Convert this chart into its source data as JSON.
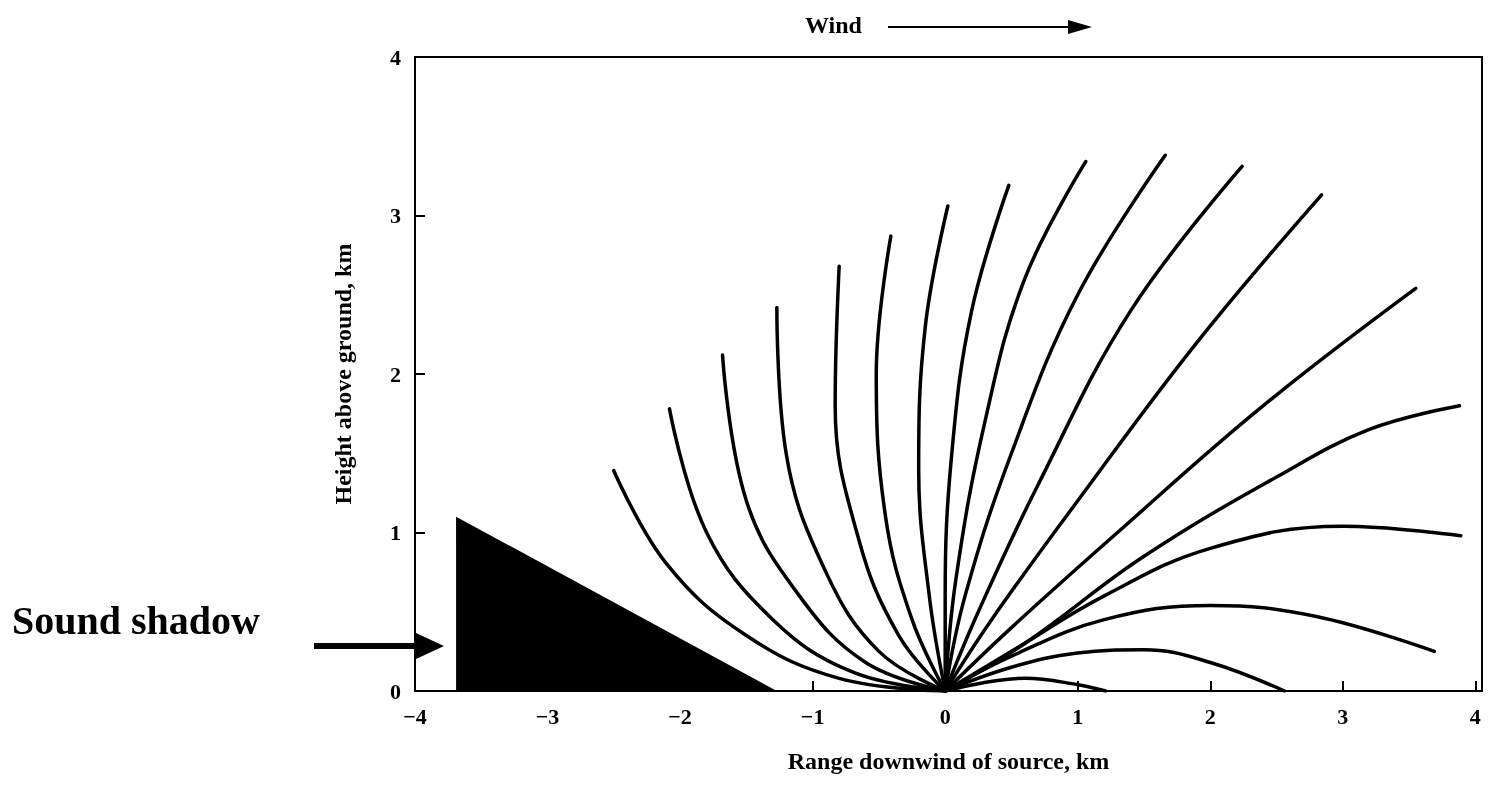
{
  "chart_data": {
    "type": "line",
    "title": "Wind",
    "xlabel": "Range downwind of source, km",
    "ylabel": "Height above ground, km",
    "xlim": [
      -4,
      4.05
    ],
    "ylim": [
      0,
      4
    ],
    "xticks": [
      -4,
      -3,
      -2,
      -1,
      0,
      1,
      2,
      3,
      4
    ],
    "yticks": [
      0,
      1,
      2,
      3,
      4
    ],
    "grid": false,
    "marker": "none",
    "line_style": "solid",
    "annotations": [
      "Sound shadow"
    ],
    "series": [
      {
        "type": "area",
        "color": "#000000",
        "x": [
          -3.69,
          -1.27
        ],
        "values": [
          1.1,
          0
        ]
      },
      {
        "color": "#000000",
        "x": [
          0,
          -0.8,
          -1.5,
          -2.1,
          -2.5
        ],
        "values": [
          0,
          0.08,
          0.35,
          0.8,
          1.39
        ]
      },
      {
        "color": "#000000",
        "x": [
          0,
          -0.7,
          -1.3,
          -1.8,
          -2.08
        ],
        "values": [
          0,
          0.12,
          0.45,
          1.0,
          1.78
        ]
      },
      {
        "color": "#000000",
        "x": [
          0,
          -0.6,
          -1.1,
          -1.5,
          -1.68
        ],
        "values": [
          0,
          0.18,
          0.6,
          1.2,
          2.12
        ]
      },
      {
        "color": "#000000",
        "x": [
          0,
          -0.5,
          -0.9,
          -1.2,
          -1.27
        ],
        "values": [
          0,
          0.25,
          0.75,
          1.5,
          2.42
        ]
      },
      {
        "color": "#000000",
        "x": [
          0,
          -0.35,
          -0.65,
          -0.83,
          -0.8
        ],
        "values": [
          0,
          0.35,
          0.95,
          1.8,
          2.68
        ]
      },
      {
        "color": "#000000",
        "x": [
          0,
          -0.25,
          -0.45,
          -0.52,
          -0.41
        ],
        "values": [
          0,
          0.45,
          1.1,
          2.0,
          2.87
        ]
      },
      {
        "color": "#000000",
        "x": [
          0,
          -0.12,
          -0.2,
          -0.15,
          0.02
        ],
        "values": [
          0,
          0.6,
          1.4,
          2.3,
          3.06
        ]
      },
      {
        "color": "#000000",
        "x": [
          0,
          0.0,
          0.05,
          0.2,
          0.48
        ],
        "values": [
          0,
          0.6,
          1.5,
          2.4,
          3.19
        ]
      },
      {
        "color": "#000000",
        "x": [
          0,
          0.08,
          0.3,
          0.6,
          1.06
        ],
        "values": [
          0,
          0.7,
          1.7,
          2.6,
          3.34
        ]
      },
      {
        "color": "#000000",
        "x": [
          0,
          0.15,
          0.5,
          1.0,
          1.66
        ],
        "values": [
          0,
          0.6,
          1.5,
          2.5,
          3.38
        ]
      },
      {
        "color": "#000000",
        "x": [
          0,
          0.25,
          0.7,
          1.4,
          2.24
        ],
        "values": [
          0,
          0.5,
          1.3,
          2.4,
          3.31
        ]
      },
      {
        "color": "#000000",
        "x": [
          0,
          0.35,
          1.0,
          1.9,
          2.84
        ],
        "values": [
          0,
          0.45,
          1.2,
          2.2,
          3.13
        ]
      },
      {
        "color": "#000000",
        "x": [
          0,
          0.5,
          1.3,
          2.4,
          3.55
        ],
        "values": [
          0,
          0.4,
          1.0,
          1.8,
          2.54
        ]
      },
      {
        "color": "#000000",
        "x": [
          0,
          0.6,
          1.5,
          2.5,
          3.2,
          3.88
        ],
        "values": [
          0,
          0.3,
          0.85,
          1.35,
          1.65,
          1.8
        ]
      },
      {
        "color": "#000000",
        "x": [
          0,
          0.5,
          1.2,
          2.0,
          3.0,
          3.89
        ],
        "values": [
          0,
          0.25,
          0.6,
          0.9,
          1.04,
          0.98
        ]
      },
      {
        "color": "#000000",
        "x": [
          0,
          0.5,
          1.2,
          2.0,
          2.8,
          3.69
        ],
        "values": [
          0,
          0.22,
          0.45,
          0.54,
          0.47,
          0.25
        ]
      },
      {
        "color": "#000000",
        "x": [
          0,
          0.5,
          1.0,
          1.5,
          2.0,
          2.56
        ],
        "values": [
          0,
          0.15,
          0.24,
          0.26,
          0.18,
          0
        ]
      },
      {
        "color": "#000000",
        "x": [
          0,
          0.6,
          1.0,
          1.21
        ],
        "values": [
          0,
          0.08,
          0.04,
          0
        ]
      }
    ]
  }
}
